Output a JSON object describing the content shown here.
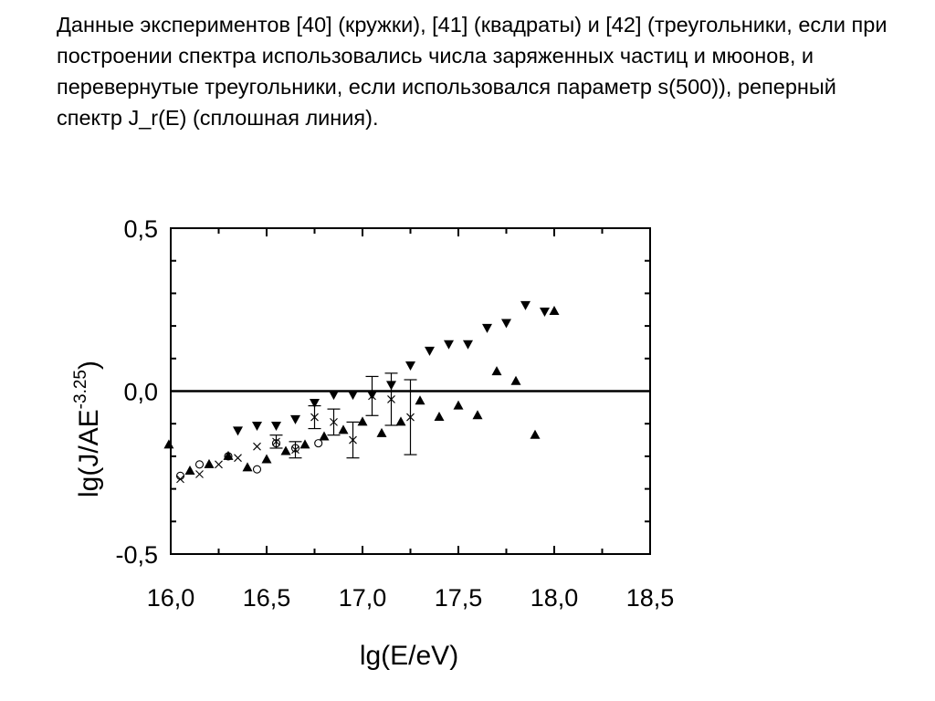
{
  "caption": "Данные экспериментов [40] (кружки), [41] (квадраты) и [42] (треугольники, если при построении спектра использовались числа заряженных частиц и мюонов, и перевернутые треугольники, если использовался параметр s(500)), реперный спектр J_r(E) (сплошная линия).",
  "chart_data": {
    "type": "scatter",
    "xlabel": "lg(E/eV)",
    "ylabel": "lg(J/AE",
    "ylabel_sup": "-3.25",
    "ylabel_close": ")",
    "xlim": [
      16.0,
      18.5
    ],
    "ylim": [
      -0.5,
      0.5
    ],
    "x_ticks": [
      16.0,
      16.5,
      17.0,
      17.5,
      18.0,
      18.5
    ],
    "x_tick_labels": [
      "16,0",
      "16,5",
      "17,0",
      "17,5",
      "18,0",
      "18,5"
    ],
    "y_ticks": [
      -0.5,
      0.0,
      0.5
    ],
    "y_tick_labels": [
      "-0,5",
      "0,0",
      "0,5"
    ],
    "reference_line": {
      "name": "J_r(E)",
      "y": 0.0
    },
    "series": [
      {
        "marker": "circle",
        "points": [
          {
            "x": 16.05,
            "y": -0.26
          },
          {
            "x": 16.15,
            "y": -0.225
          },
          {
            "x": 16.3,
            "y": -0.2
          },
          {
            "x": 16.45,
            "y": -0.24
          },
          {
            "x": 16.55,
            "y": -0.16
          },
          {
            "x": 16.65,
            "y": -0.175
          },
          {
            "x": 16.77,
            "y": -0.16
          }
        ]
      },
      {
        "marker": "cross",
        "points": [
          {
            "x": 16.05,
            "y": -0.27
          },
          {
            "x": 16.15,
            "y": -0.255
          },
          {
            "x": 16.25,
            "y": -0.225
          },
          {
            "x": 16.35,
            "y": -0.205
          },
          {
            "x": 16.45,
            "y": -0.17
          },
          {
            "x": 16.55,
            "y": -0.155,
            "err": 0.02
          },
          {
            "x": 16.65,
            "y": -0.18,
            "err": 0.025
          },
          {
            "x": 16.75,
            "y": -0.08,
            "err": 0.035
          },
          {
            "x": 16.85,
            "y": -0.095,
            "err": 0.04
          },
          {
            "x": 16.95,
            "y": -0.15,
            "err": 0.055
          },
          {
            "x": 17.05,
            "y": -0.015,
            "err": 0.06
          },
          {
            "x": 17.15,
            "y": -0.025,
            "err": 0.08
          },
          {
            "x": 17.25,
            "y": -0.08,
            "err": 0.115
          }
        ]
      },
      {
        "marker": "triangle-up",
        "points": [
          {
            "x": 15.99,
            "y": -0.165
          },
          {
            "x": 16.1,
            "y": -0.245
          },
          {
            "x": 16.2,
            "y": -0.225
          },
          {
            "x": 16.3,
            "y": -0.2
          },
          {
            "x": 16.4,
            "y": -0.235
          },
          {
            "x": 16.5,
            "y": -0.21
          },
          {
            "x": 16.6,
            "y": -0.185
          },
          {
            "x": 16.7,
            "y": -0.165
          },
          {
            "x": 16.8,
            "y": -0.14
          },
          {
            "x": 16.9,
            "y": -0.12
          },
          {
            "x": 17.0,
            "y": -0.095
          },
          {
            "x": 17.1,
            "y": -0.13
          },
          {
            "x": 17.2,
            "y": -0.095
          },
          {
            "x": 17.3,
            "y": -0.03
          },
          {
            "x": 17.4,
            "y": -0.08
          },
          {
            "x": 17.5,
            "y": -0.045
          },
          {
            "x": 17.6,
            "y": -0.075
          },
          {
            "x": 17.7,
            "y": 0.06
          },
          {
            "x": 17.8,
            "y": 0.03
          },
          {
            "x": 17.9,
            "y": -0.135
          },
          {
            "x": 18.0,
            "y": 0.245
          }
        ]
      },
      {
        "marker": "triangle-down",
        "points": [
          {
            "x": 16.35,
            "y": -0.12
          },
          {
            "x": 16.45,
            "y": -0.105
          },
          {
            "x": 16.55,
            "y": -0.105
          },
          {
            "x": 16.65,
            "y": -0.085
          },
          {
            "x": 16.75,
            "y": -0.035
          },
          {
            "x": 16.85,
            "y": -0.01
          },
          {
            "x": 16.95,
            "y": -0.01
          },
          {
            "x": 17.05,
            "y": -0.01
          },
          {
            "x": 17.15,
            "y": 0.02
          },
          {
            "x": 17.25,
            "y": 0.08
          },
          {
            "x": 17.35,
            "y": 0.125
          },
          {
            "x": 17.45,
            "y": 0.145
          },
          {
            "x": 17.55,
            "y": 0.145
          },
          {
            "x": 17.65,
            "y": 0.195
          },
          {
            "x": 17.75,
            "y": 0.21
          },
          {
            "x": 17.85,
            "y": 0.265
          },
          {
            "x": 17.95,
            "y": 0.245
          }
        ]
      }
    ]
  }
}
